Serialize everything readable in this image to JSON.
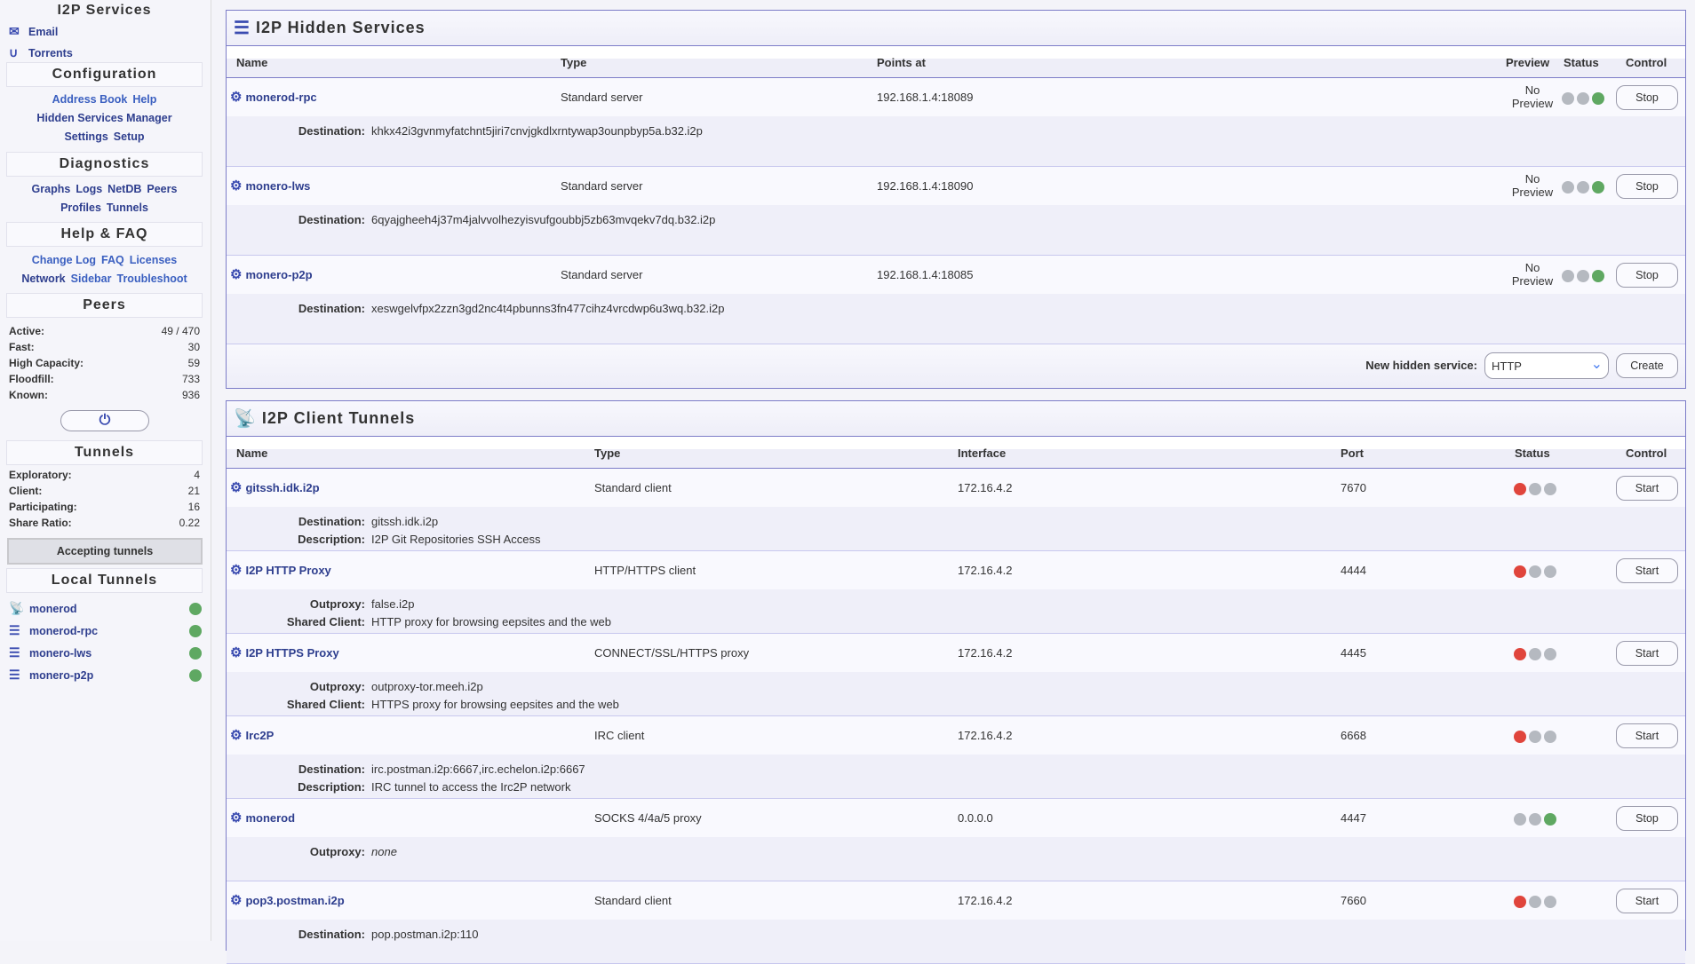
{
  "sidebar": {
    "services_title": "I2P Services",
    "services": [
      {
        "label": "Email",
        "icon": "envelope-icon"
      },
      {
        "label": "Torrents",
        "icon": "magnet-icon"
      }
    ],
    "config_title": "Configuration",
    "config_links": [
      [
        "Address Book",
        "Help"
      ],
      [
        "Hidden Services Manager"
      ],
      [
        "Settings",
        "Setup"
      ]
    ],
    "diag_title": "Diagnostics",
    "diag_links": [
      [
        "Graphs",
        "Logs",
        "NetDB",
        "Peers"
      ],
      [
        "Profiles",
        "Tunnels"
      ]
    ],
    "help_title": "Help & FAQ",
    "help_links": [
      [
        "Change Log",
        "FAQ",
        "Licenses"
      ],
      [
        "Network",
        "Sidebar",
        "Troubleshoot"
      ]
    ],
    "peers_title": "Peers",
    "peers": [
      {
        "k": "Active:",
        "v": "49 / 470"
      },
      {
        "k": "Fast:",
        "v": "30"
      },
      {
        "k": "High Capacity:",
        "v": "59"
      },
      {
        "k": "Floodfill:",
        "v": "733"
      },
      {
        "k": "Known:",
        "v": "936"
      }
    ],
    "power_icon": "power-icon",
    "tunnels_title": "Tunnels",
    "tunnels": [
      {
        "k": "Exploratory:",
        "v": "4"
      },
      {
        "k": "Client:",
        "v": "21"
      },
      {
        "k": "Participating:",
        "v": "16"
      },
      {
        "k": "Share Ratio:",
        "v": "0.22"
      }
    ],
    "accepting": "Accepting tunnels",
    "local_title": "Local Tunnels",
    "local": [
      {
        "label": "monerod",
        "icon": "satellite-icon",
        "status": "running"
      },
      {
        "label": "monerod-rpc",
        "icon": "server-icon",
        "status": "running"
      },
      {
        "label": "monero-lws",
        "icon": "server-icon",
        "status": "running"
      },
      {
        "label": "monero-p2p",
        "icon": "server-icon",
        "status": "running"
      }
    ]
  },
  "colors": {
    "running": "#5fa862",
    "stopped": "#e0453c",
    "idle": "#b5b9c0",
    "accent": "#3a4bb0",
    "border": "#7d7dc8"
  },
  "hidden": {
    "title": "I2P Hidden Services",
    "headers": {
      "name": "Name",
      "type": "Type",
      "points": "Points at",
      "preview": "Preview",
      "status": "Status",
      "control": "Control"
    },
    "rows": [
      {
        "name": "monerod-rpc",
        "type": "Standard server",
        "points": "192.168.1.4:18089",
        "preview": "No Preview",
        "status": "running",
        "control": "Stop",
        "details": [
          {
            "k": "Destination:",
            "v": "khkx42i3gvnmyfatchnt5jiri7cnvjgkdlxrntywap3ounpbyp5a.b32.i2p"
          }
        ]
      },
      {
        "name": "monero-lws",
        "type": "Standard server",
        "points": "192.168.1.4:18090",
        "preview": "No Preview",
        "status": "running",
        "control": "Stop",
        "details": [
          {
            "k": "Destination:",
            "v": "6qyajgheeh4j37m4jalvvolhezyisvufgoubbj5zb63mvqekv7dq.b32.i2p"
          }
        ]
      },
      {
        "name": "monero-p2p",
        "type": "Standard server",
        "points": "192.168.1.4:18085",
        "preview": "No Preview",
        "status": "running",
        "control": "Stop",
        "details": [
          {
            "k": "Destination:",
            "v": "xeswgelvfpx2zzn3gd2nc4t4pbunns3fn477cihz4vrcdwp6u3wq.b32.i2p"
          }
        ]
      }
    ],
    "new_label": "New hidden service:",
    "new_value": "HTTP",
    "create": "Create"
  },
  "client": {
    "title": "I2P Client Tunnels",
    "headers": {
      "name": "Name",
      "type": "Type",
      "iface": "Interface",
      "port": "Port",
      "status": "Status",
      "control": "Control"
    },
    "rows": [
      {
        "name": "gitssh.idk.i2p",
        "type": "Standard client",
        "iface": "172.16.4.2",
        "port": "7670",
        "status": "stopped",
        "control": "Start",
        "details": [
          {
            "k": "Destination:",
            "v": "gitssh.idk.i2p"
          },
          {
            "k": "Description:",
            "v": "I2P Git Repositories SSH Access"
          }
        ]
      },
      {
        "name": "I2P HTTP Proxy",
        "type": "HTTP/HTTPS client",
        "iface": "172.16.4.2",
        "port": "4444",
        "status": "stopped",
        "control": "Start",
        "details": [
          {
            "k": "Outproxy:",
            "v": "false.i2p"
          },
          {
            "k": "Shared Client:",
            "v": "HTTP proxy for browsing eepsites and the web"
          }
        ]
      },
      {
        "name": "I2P HTTPS Proxy",
        "type": "CONNECT/SSL/HTTPS proxy",
        "iface": "172.16.4.2",
        "port": "4445",
        "status": "stopped",
        "control": "Start",
        "details": [
          {
            "k": "Outproxy:",
            "v": "outproxy-tor.meeh.i2p"
          },
          {
            "k": "Shared Client:",
            "v": "HTTPS proxy for browsing eepsites and the web"
          }
        ]
      },
      {
        "name": "Irc2P",
        "type": "IRC client",
        "iface": "172.16.4.2",
        "port": "6668",
        "status": "stopped",
        "control": "Start",
        "details": [
          {
            "k": "Destination:",
            "v": "irc.postman.i2p:6667,irc.echelon.i2p:6667"
          },
          {
            "k": "Description:",
            "v": "IRC tunnel to access the Irc2P network"
          }
        ]
      },
      {
        "name": "monerod",
        "type": "SOCKS 4/4a/5 proxy",
        "iface": "0.0.0.0",
        "port": "4447",
        "status": "running",
        "control": "Stop",
        "details": [
          {
            "k": "Outproxy:",
            "v": "none"
          }
        ]
      },
      {
        "name": "pop3.postman.i2p",
        "type": "Standard client",
        "iface": "172.16.4.2",
        "port": "7660",
        "status": "stopped",
        "control": "Start",
        "details": [
          {
            "k": "Destination:",
            "v": "pop.postman.i2p:110"
          }
        ]
      }
    ]
  }
}
